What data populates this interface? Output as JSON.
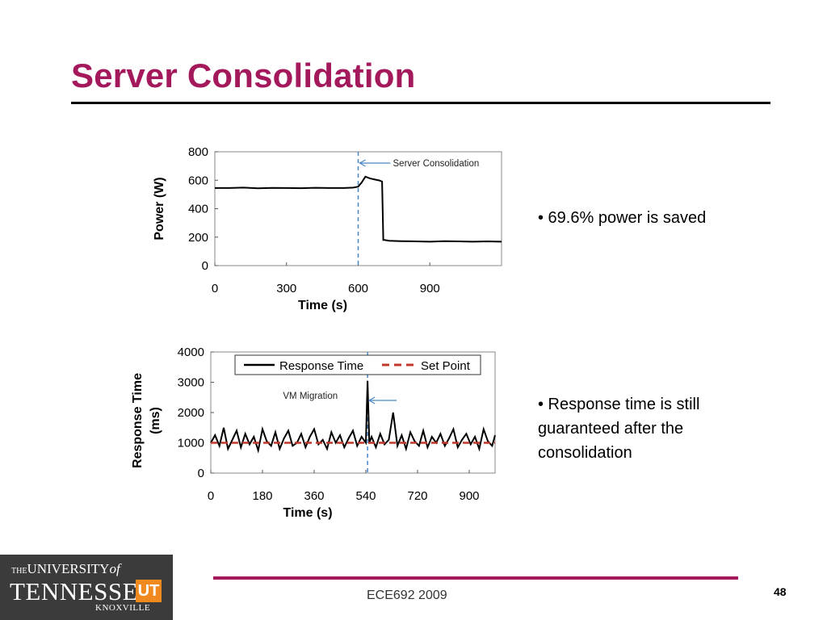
{
  "slide": {
    "title": "Server Consolidation",
    "bullets": [
      "• 69.6% power is saved",
      "• Response time is still",
      "guaranteed after the",
      "consolidation"
    ],
    "footer": "ECE692   2009",
    "page_number": "48",
    "logo": {
      "line1_prefix": "THE",
      "line1": "UNIVERSITY",
      "line1_suffix": "of",
      "line2": "TENNESSEE",
      "badge": "UT",
      "line3": "KNOXVILLE"
    }
  },
  "chart_data": [
    {
      "type": "line",
      "xlabel": "Time (s)",
      "ylabel": "Power (W)",
      "xlim": [
        0,
        1200
      ],
      "ylim": [
        0,
        800
      ],
      "xticks": [
        "0",
        "300",
        "600",
        "900"
      ],
      "yticks": [
        "0",
        "200",
        "400",
        "600",
        "800"
      ],
      "annotation": {
        "text": "Server  Consolidation",
        "x": 600
      },
      "series": [
        {
          "color": "#000000",
          "x": [
            0,
            60,
            120,
            180,
            240,
            300,
            360,
            420,
            480,
            540,
            580,
            600,
            615,
            630,
            650,
            670,
            690,
            700,
            705,
            710,
            730,
            780,
            840,
            900,
            960,
            1020,
            1080,
            1140,
            1200
          ],
          "y": [
            545,
            545,
            548,
            543,
            546,
            545,
            544,
            547,
            545,
            545,
            548,
            555,
            585,
            625,
            612,
            605,
            598,
            590,
            180,
            180,
            175,
            172,
            170,
            168,
            172,
            170,
            168,
            170,
            168
          ]
        }
      ]
    },
    {
      "type": "line",
      "xlabel": "Time (s)",
      "ylabel": "Response Time (ms)",
      "xlim": [
        0,
        990
      ],
      "ylim": [
        0,
        4000
      ],
      "xticks": [
        "0",
        "180",
        "360",
        "540",
        "720",
        "900"
      ],
      "yticks": [
        "0",
        "1000",
        "2000",
        "3000",
        "4000"
      ],
      "annotation": {
        "text": "VM Migration",
        "x": 546
      },
      "series": [
        {
          "name": "Response Time",
          "color": "#000000",
          "x": [
            0,
            15,
            30,
            45,
            60,
            75,
            90,
            105,
            120,
            135,
            150,
            165,
            180,
            195,
            210,
            225,
            240,
            255,
            270,
            285,
            300,
            315,
            330,
            345,
            360,
            375,
            390,
            405,
            420,
            435,
            450,
            465,
            480,
            495,
            510,
            525,
            540,
            546,
            552,
            560,
            575,
            590,
            605,
            620,
            635,
            650,
            665,
            680,
            695,
            710,
            725,
            740,
            755,
            770,
            785,
            800,
            815,
            830,
            845,
            860,
            875,
            890,
            905,
            920,
            935,
            950,
            965,
            980,
            990
          ],
          "y": [
            1000,
            1250,
            900,
            1500,
            800,
            1100,
            1400,
            850,
            1300,
            950,
            1200,
            750,
            1450,
            1050,
            900,
            1350,
            800,
            1150,
            1400,
            900,
            1000,
            1300,
            850,
            1200,
            1450,
            950,
            1100,
            800,
            1350,
            1000,
            1250,
            850,
            1150,
            1400,
            900,
            1200,
            1000,
            3050,
            1000,
            1200,
            850,
            1300,
            950,
            1100,
            2000,
            900,
            1250,
            800,
            1350,
            1050,
            900,
            1400,
            850,
            1200,
            1000,
            1300,
            900,
            1150,
            1450,
            850,
            1100,
            1300,
            950,
            1200,
            800,
            1450,
            1050,
            900,
            1250
          ]
        },
        {
          "name": "Set Point",
          "color": "#c0392b",
          "dashed": true,
          "x": [
            0,
            990
          ],
          "y": [
            1000,
            1000
          ]
        }
      ]
    }
  ]
}
